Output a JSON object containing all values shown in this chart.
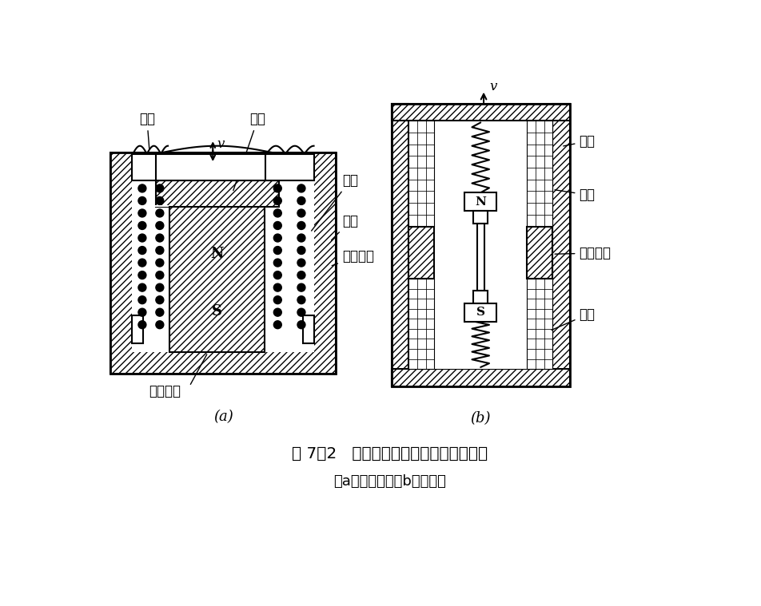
{
  "title_main": "图 7－2   恒磁通式磁电传感器结构原理图",
  "title_sub": "（a）动圈式；（b）动铁式",
  "label_a_spring": "弹簧",
  "label_a_v": "v",
  "label_a_pole": "极掌",
  "label_a_coil": "线圈",
  "label_a_yoke": "磁轭",
  "label_a_comp": "补偿线圈",
  "label_a_magnet": "永久磁铁",
  "label_a_caption": "(a)",
  "label_b_shell": "壳体",
  "label_b_coil": "线圈",
  "label_b_magnet": "永久磁铁",
  "label_b_spring": "弹簧",
  "label_b_v": "v",
  "label_b_caption": "(b)",
  "bg": "#ffffff",
  "fg": "#000000",
  "lw": 1.5
}
